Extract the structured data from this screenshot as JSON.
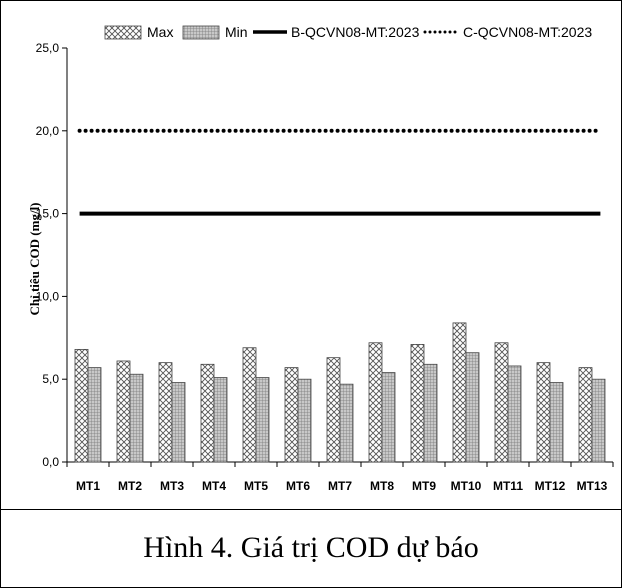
{
  "caption": "Hình 4. Giá trị COD dự báo",
  "chart_data": {
    "type": "bar",
    "categories": [
      "MT1",
      "MT2",
      "MT3",
      "MT4",
      "MT5",
      "MT6",
      "MT7",
      "MT8",
      "MT9",
      "MT10",
      "MT11",
      "MT12",
      "MT13"
    ],
    "series": [
      {
        "name": "Max",
        "values": [
          6.8,
          6.1,
          6.0,
          5.9,
          6.9,
          5.7,
          6.3,
          7.2,
          7.1,
          8.4,
          7.2,
          6.0,
          5.7
        ],
        "pattern": "crosshatch"
      },
      {
        "name": "Min",
        "values": [
          5.7,
          5.3,
          4.8,
          5.1,
          5.1,
          5.0,
          4.7,
          5.4,
          5.9,
          6.6,
          5.8,
          4.8,
          5.0
        ],
        "pattern": "fine-grid"
      }
    ],
    "reference_lines": [
      {
        "name": "B-QCVN08-MT:2023",
        "value": 15.0,
        "style": "solid"
      },
      {
        "name": "C-QCVN08-MT:2023",
        "value": 20.0,
        "style": "dotted"
      }
    ],
    "ylabel": "Chỉ tiêu COD (mg/l)",
    "xlabel": "",
    "ylim": [
      0,
      25
    ],
    "yticks": [
      "0,0",
      "5,0",
      "10,0",
      "15,0",
      "20,0",
      "25,0"
    ],
    "grid": false,
    "legend_position": "top"
  }
}
